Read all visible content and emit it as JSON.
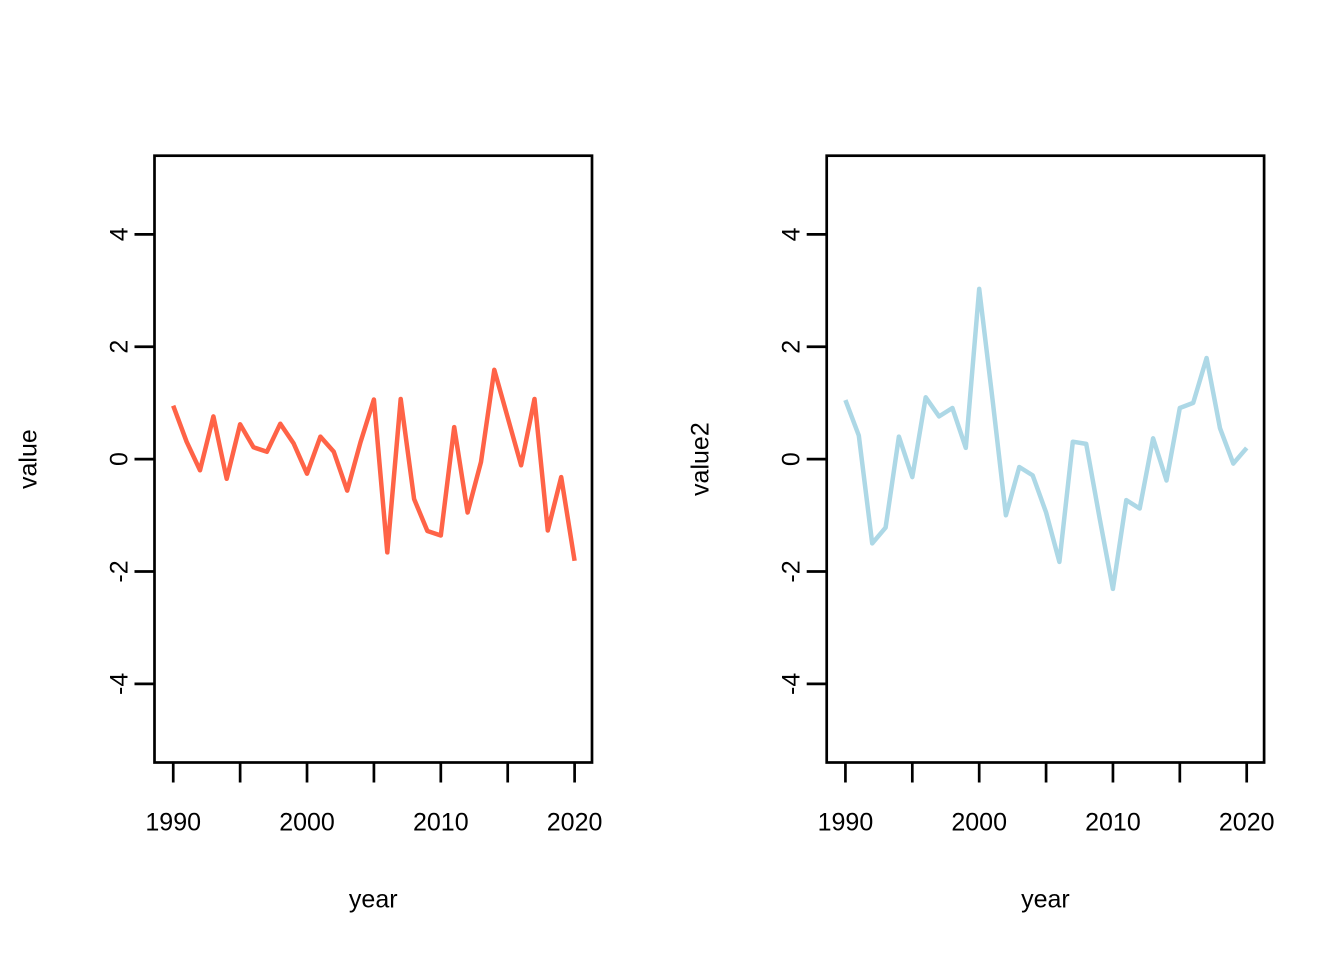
{
  "figure": {
    "background": "#FFFFFF",
    "plot_count": 2
  },
  "chart_data": [
    {
      "type": "line",
      "title": "",
      "xlabel": "year",
      "ylabel": "value",
      "line_color": "#FF6347",
      "line_color_name": "tomato",
      "axis_color": "#000000",
      "grid": false,
      "legend": null,
      "xlim": [
        1988.6,
        2021.3
      ],
      "ylim": [
        -5.4,
        5.4
      ],
      "xticks": [
        1990,
        1995,
        2000,
        2005,
        2010,
        2015,
        2020
      ],
      "xtick_labels": [
        "1990",
        "",
        "2000",
        "",
        "2010",
        "",
        "2020"
      ],
      "yticks": [
        -4,
        -2,
        0,
        2,
        4
      ],
      "ytick_labels": [
        "-4",
        "-2",
        "0",
        "2",
        "4"
      ],
      "x": [
        1990,
        1991,
        1992,
        1993,
        1994,
        1995,
        1996,
        1997,
        1998,
        1999,
        2000,
        2001,
        2002,
        2003,
        2004,
        2005,
        2006,
        2007,
        2008,
        2009,
        2010,
        2011,
        2012,
        2013,
        2014,
        2015,
        2016,
        2017,
        2018,
        2019,
        2020
      ],
      "values": [
        0.95,
        0.31,
        -0.2,
        0.76,
        -0.35,
        0.62,
        0.21,
        0.13,
        0.63,
        0.28,
        -0.26,
        0.4,
        0.13,
        -0.56,
        0.3,
        1.06,
        -1.66,
        1.07,
        -0.71,
        -1.28,
        -1.36,
        0.57,
        -0.95,
        -0.05,
        1.59,
        0.74,
        -0.11,
        1.07,
        -1.27,
        -0.32,
        -1.81
      ]
    },
    {
      "type": "line",
      "title": "",
      "xlabel": "year",
      "ylabel": "value2",
      "line_color": "#ADD8E6",
      "line_color_name": "lightblue",
      "axis_color": "#000000",
      "grid": false,
      "legend": null,
      "xlim": [
        1988.6,
        2021.3
      ],
      "ylim": [
        -5.4,
        5.4
      ],
      "xticks": [
        1990,
        1995,
        2000,
        2005,
        2010,
        2015,
        2020
      ],
      "xtick_labels": [
        "1990",
        "",
        "2000",
        "",
        "2010",
        "",
        "2020"
      ],
      "yticks": [
        -4,
        -2,
        0,
        2,
        4
      ],
      "ytick_labels": [
        "-4",
        "-2",
        "0",
        "2",
        "4"
      ],
      "x": [
        1990,
        1991,
        1992,
        1993,
        1994,
        1995,
        1996,
        1997,
        1998,
        1999,
        2000,
        2001,
        2002,
        2003,
        2004,
        2005,
        2006,
        2007,
        2008,
        2009,
        2010,
        2011,
        2012,
        2013,
        2014,
        2015,
        2016,
        2017,
        2018,
        2019,
        2020
      ],
      "values": [
        1.05,
        0.42,
        -1.5,
        -1.22,
        0.4,
        -0.32,
        1.1,
        0.76,
        0.91,
        0.2,
        3.03,
        1.05,
        -1.0,
        -0.14,
        -0.29,
        -0.95,
        -1.83,
        0.31,
        0.27,
        -1.05,
        -2.31,
        -0.73,
        -0.88,
        0.37,
        -0.38,
        0.91,
        1.0,
        1.8,
        0.55,
        -0.08,
        0.2
      ]
    }
  ]
}
